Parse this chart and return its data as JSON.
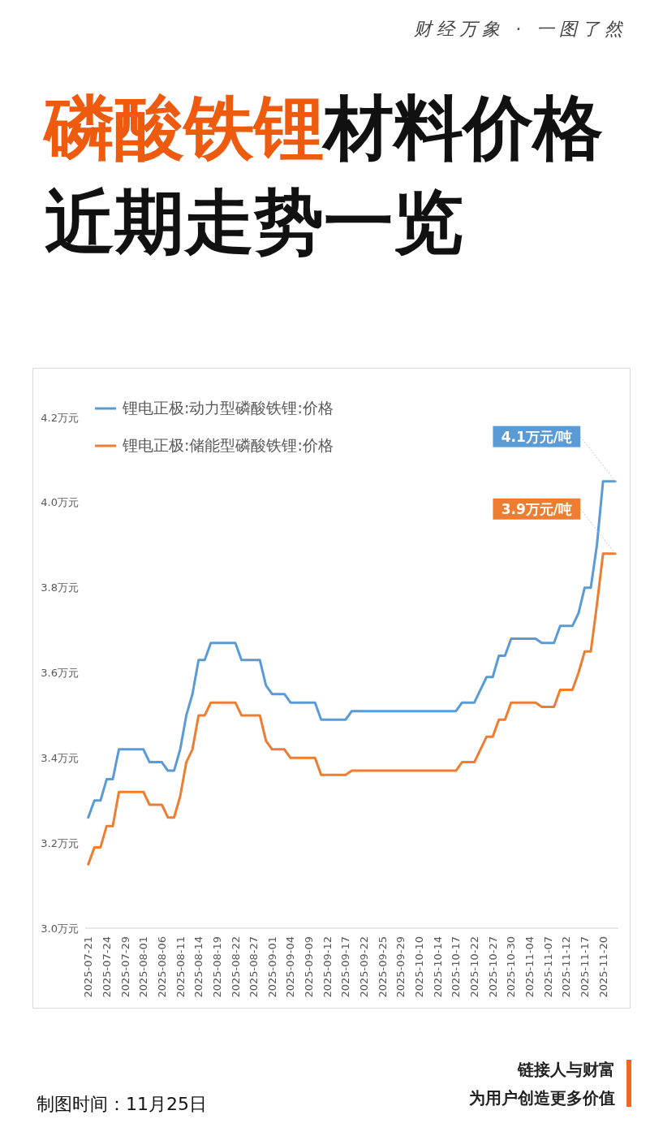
{
  "chart_data": {
    "type": "line",
    "title": "磷酸铁锂材料价格近期走势一览",
    "categories": [
      "2025-07-21",
      null,
      null,
      "2025-07-24",
      null,
      null,
      "2025-07-29",
      null,
      null,
      "2025-08-01",
      null,
      null,
      "2025-08-06",
      null,
      null,
      "2025-08-11",
      null,
      null,
      "2025-08-14",
      null,
      null,
      "2025-08-19",
      null,
      null,
      "2025-08-22",
      null,
      null,
      "2025-08-27",
      null,
      null,
      "2025-09-01",
      null,
      null,
      "2025-09-04",
      null,
      null,
      "2025-09-09",
      null,
      null,
      "2025-09-12",
      null,
      null,
      "2025-09-17",
      null,
      null,
      "2025-09-22",
      null,
      null,
      "2025-09-25",
      null,
      null,
      "2025-09-29",
      null,
      null,
      "2025-10-10",
      null,
      null,
      "2025-10-14",
      null,
      null,
      "2025-10-17",
      null,
      null,
      "2025-10-22",
      null,
      null,
      "2025-10-27",
      null,
      null,
      "2025-10-30",
      null,
      null,
      "2025-11-04",
      null,
      null,
      "2025-11-07",
      null,
      null,
      "2025-11-12",
      null,
      null,
      "2025-11-17",
      null,
      null,
      "2025-11-20",
      null,
      null
    ],
    "series": [
      {
        "name": "锂电正极:动力型磷酸铁锂:价格",
        "color": "#5b9bd5",
        "values": [
          3.26,
          3.3,
          3.3,
          3.35,
          3.35,
          3.42,
          3.42,
          3.42,
          3.42,
          3.42,
          3.39,
          3.39,
          3.39,
          3.37,
          3.37,
          3.42,
          3.5,
          3.55,
          3.63,
          3.63,
          3.67,
          3.67,
          3.67,
          3.67,
          3.67,
          3.63,
          3.63,
          3.63,
          3.63,
          3.57,
          3.55,
          3.55,
          3.55,
          3.53,
          3.53,
          3.53,
          3.53,
          3.53,
          3.49,
          3.49,
          3.49,
          3.49,
          3.49,
          3.51,
          3.51,
          3.51,
          3.51,
          3.51,
          3.51,
          3.51,
          3.51,
          3.51,
          3.51,
          3.51,
          3.51,
          3.51,
          3.51,
          3.51,
          3.51,
          3.51,
          3.51,
          3.53,
          3.53,
          3.53,
          3.56,
          3.59,
          3.59,
          3.64,
          3.64,
          3.68,
          3.68,
          3.68,
          3.68,
          3.68,
          3.67,
          3.67,
          3.67,
          3.71,
          3.71,
          3.71,
          3.74,
          3.8,
          3.8,
          3.9,
          4.05,
          4.05,
          4.05
        ],
        "value_labels": [
          null,
          null,
          null,
          null,
          null,
          null,
          null,
          null,
          null,
          null,
          null,
          null,
          null,
          null,
          null,
          null,
          null,
          null,
          null,
          null,
          null,
          null,
          null,
          null,
          null,
          null,
          null,
          null,
          null,
          null,
          null,
          null,
          null,
          null,
          null,
          null,
          null,
          null,
          null,
          null,
          null,
          null,
          null,
          null,
          null,
          null,
          null,
          null,
          null,
          null,
          null,
          null,
          null,
          null,
          null,
          null,
          null,
          null,
          null,
          null,
          null,
          null,
          null,
          null,
          null,
          null,
          null,
          null,
          null,
          null,
          null,
          null,
          null,
          null,
          null,
          null,
          null,
          null,
          null,
          null,
          null,
          null,
          null,
          null,
          null,
          null,
          "4.1万元/吨"
        ]
      },
      {
        "name": "锂电正极:储能型磷酸铁锂:价格",
        "color": "#ed7d31",
        "values": [
          3.15,
          3.19,
          3.19,
          3.24,
          3.24,
          3.32,
          3.32,
          3.32,
          3.32,
          3.32,
          3.29,
          3.29,
          3.29,
          3.26,
          3.26,
          3.31,
          3.39,
          3.42,
          3.5,
          3.5,
          3.53,
          3.53,
          3.53,
          3.53,
          3.53,
          3.5,
          3.5,
          3.5,
          3.5,
          3.44,
          3.42,
          3.42,
          3.42,
          3.4,
          3.4,
          3.4,
          3.4,
          3.4,
          3.36,
          3.36,
          3.36,
          3.36,
          3.36,
          3.37,
          3.37,
          3.37,
          3.37,
          3.37,
          3.37,
          3.37,
          3.37,
          3.37,
          3.37,
          3.37,
          3.37,
          3.37,
          3.37,
          3.37,
          3.37,
          3.37,
          3.37,
          3.39,
          3.39,
          3.39,
          3.42,
          3.45,
          3.45,
          3.49,
          3.49,
          3.53,
          3.53,
          3.53,
          3.53,
          3.53,
          3.52,
          3.52,
          3.52,
          3.56,
          3.56,
          3.56,
          3.6,
          3.65,
          3.65,
          3.76,
          3.88,
          3.88,
          3.88
        ],
        "value_labels": [
          null,
          null,
          null,
          null,
          null,
          null,
          null,
          null,
          null,
          null,
          null,
          null,
          null,
          null,
          null,
          null,
          null,
          null,
          null,
          null,
          null,
          null,
          null,
          null,
          null,
          null,
          null,
          null,
          null,
          null,
          null,
          null,
          null,
          null,
          null,
          null,
          null,
          null,
          null,
          null,
          null,
          null,
          null,
          null,
          null,
          null,
          null,
          null,
          null,
          null,
          null,
          null,
          null,
          null,
          null,
          null,
          null,
          null,
          null,
          null,
          null,
          null,
          null,
          null,
          null,
          null,
          null,
          null,
          null,
          null,
          null,
          null,
          null,
          null,
          null,
          null,
          null,
          null,
          null,
          null,
          null,
          null,
          null,
          null,
          null,
          null,
          "3.9万元/吨"
        ]
      }
    ],
    "ylim": [
      3.0,
      4.2
    ],
    "yticks": [
      {
        "value": 3.0,
        "label": "3.0万元"
      },
      {
        "value": 3.2,
        "label": "3.2万元"
      },
      {
        "value": 3.4,
        "label": "3.4万元"
      },
      {
        "value": 3.6,
        "label": "3.6万元"
      },
      {
        "value": 3.8,
        "label": "3.8万元"
      },
      {
        "value": 4.0,
        "label": "4.0万元"
      },
      {
        "value": 4.2,
        "label": "4.2万元"
      }
    ],
    "legend": "top left",
    "marker": "none",
    "annotations": [
      "财经万象 · 一图了然",
      "制图时间：11月25日",
      "链接人与财富",
      "为用户创造更多价值"
    ]
  }
}
